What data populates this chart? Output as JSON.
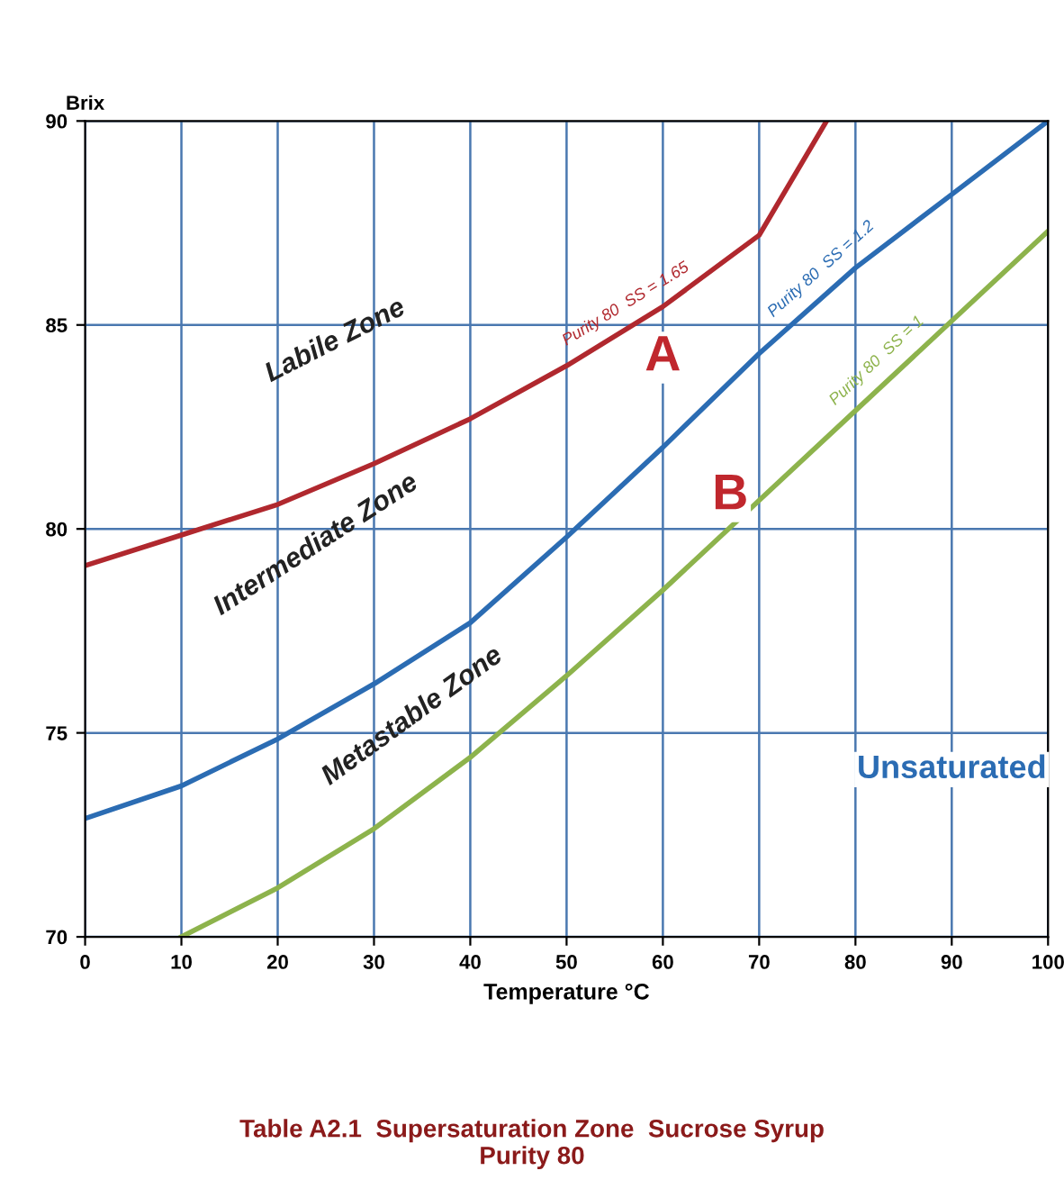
{
  "chart_data": {
    "type": "line",
    "ylabel": "Brix",
    "xlabel": "Temperature °C",
    "x": [
      0,
      10,
      20,
      30,
      40,
      50,
      60,
      70,
      80,
      90,
      100
    ],
    "series": [
      {
        "name": "Purity 80  SS = 1.65",
        "color": "#b0282e",
        "x": [
          0,
          10,
          20,
          30,
          40,
          50,
          60,
          70,
          77
        ],
        "values": [
          79.1,
          79.85,
          80.6,
          81.6,
          82.7,
          84.0,
          85.45,
          87.2,
          90.0
        ]
      },
      {
        "name": "Purity 80  SS = 1.2",
        "color": "#2b6cb3",
        "values": [
          72.9,
          73.7,
          74.85,
          76.2,
          77.7,
          79.8,
          82.0,
          84.3,
          86.4,
          88.2,
          90.0
        ]
      },
      {
        "name": "Purity 80  SS = 1",
        "color": "#8db34c",
        "x": [
          10,
          20,
          30,
          40,
          50,
          60,
          70,
          80,
          90,
          100
        ],
        "values": [
          70.0,
          71.2,
          72.65,
          74.4,
          76.4,
          78.5,
          80.7,
          82.9,
          85.1,
          87.3
        ]
      }
    ],
    "xlim": [
      0,
      100
    ],
    "ylim": [
      70,
      90
    ],
    "xticks": [
      0,
      10,
      20,
      30,
      40,
      50,
      60,
      70,
      80,
      90,
      100
    ],
    "yticks": [
      70,
      75,
      80,
      85,
      90
    ],
    "grid": true,
    "marker": "none",
    "line_style": "solid",
    "annotations": [
      "Labile Zone",
      "Intermediate Zone",
      "Metastable Zone",
      "A",
      "B",
      "Unsaturated",
      "Table A2.1  Supersaturation Zone  Sucrose Syrup\nPurity 80"
    ]
  }
}
